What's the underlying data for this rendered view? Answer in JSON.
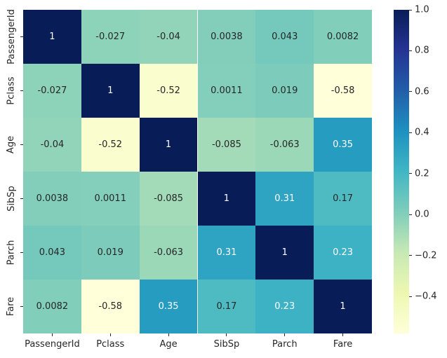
{
  "figure": {
    "background": "#ffffff",
    "description": "Correlation heatmap of numeric Titanic dataset columns"
  },
  "chart_data": {
    "type": "heatmap",
    "title": "",
    "xlabel": "",
    "ylabel": "",
    "categories": [
      "PassengerId",
      "Pclass",
      "Age",
      "SibSp",
      "Parch",
      "Fare"
    ],
    "matrix": [
      [
        1,
        -0.027,
        -0.04,
        0.0038,
        0.043,
        0.0082
      ],
      [
        -0.027,
        1,
        -0.52,
        0.0011,
        0.019,
        -0.58
      ],
      [
        -0.04,
        -0.52,
        1,
        -0.085,
        -0.063,
        0.35
      ],
      [
        0.0038,
        0.0011,
        -0.085,
        1,
        0.31,
        0.17
      ],
      [
        0.043,
        0.019,
        -0.063,
        0.31,
        1,
        0.23
      ],
      [
        0.0082,
        -0.58,
        0.35,
        0.17,
        0.23,
        1
      ]
    ],
    "annotations": [
      [
        "1",
        "-0.027",
        "-0.04",
        "0.0038",
        "0.043",
        "0.0082"
      ],
      [
        "-0.027",
        "1",
        "-0.52",
        "0.0011",
        "0.019",
        "-0.58"
      ],
      [
        "-0.04",
        "-0.52",
        "1",
        "-0.085",
        "-0.063",
        "0.35"
      ],
      [
        "0.0038",
        "0.0011",
        "-0.085",
        "1",
        "0.31",
        "0.17"
      ],
      [
        "0.043",
        "0.019",
        "-0.063",
        "0.31",
        "1",
        "0.23"
      ],
      [
        "0.0082",
        "-0.58",
        "0.35",
        "0.17",
        "0.23",
        "1"
      ]
    ],
    "vmin": -0.58,
    "vmax": 1.0,
    "colormap": {
      "name": "YlGnBu",
      "stops": [
        "#ffffd9",
        "#edf8b1",
        "#c7e9b4",
        "#7fcdbb",
        "#41b6c4",
        "#1d91c0",
        "#225ea8",
        "#253494",
        "#081d58"
      ]
    },
    "text_colors": {
      "dark": "#262626",
      "light": "#ffffff",
      "luminance_threshold": 0.408
    },
    "axes": {
      "tick_color": "#262626",
      "label_color": "#262626",
      "grid": false
    },
    "colorbar": {
      "position": "right",
      "ticks": [
        1.0,
        0.8,
        0.6,
        0.4,
        0.2,
        0.0,
        -0.2,
        -0.4
      ],
      "tick_labels": [
        "1.0",
        "0.8",
        "0.6",
        "0.4",
        "0.2",
        "0.0",
        "−0.2",
        "−0.4"
      ]
    }
  }
}
